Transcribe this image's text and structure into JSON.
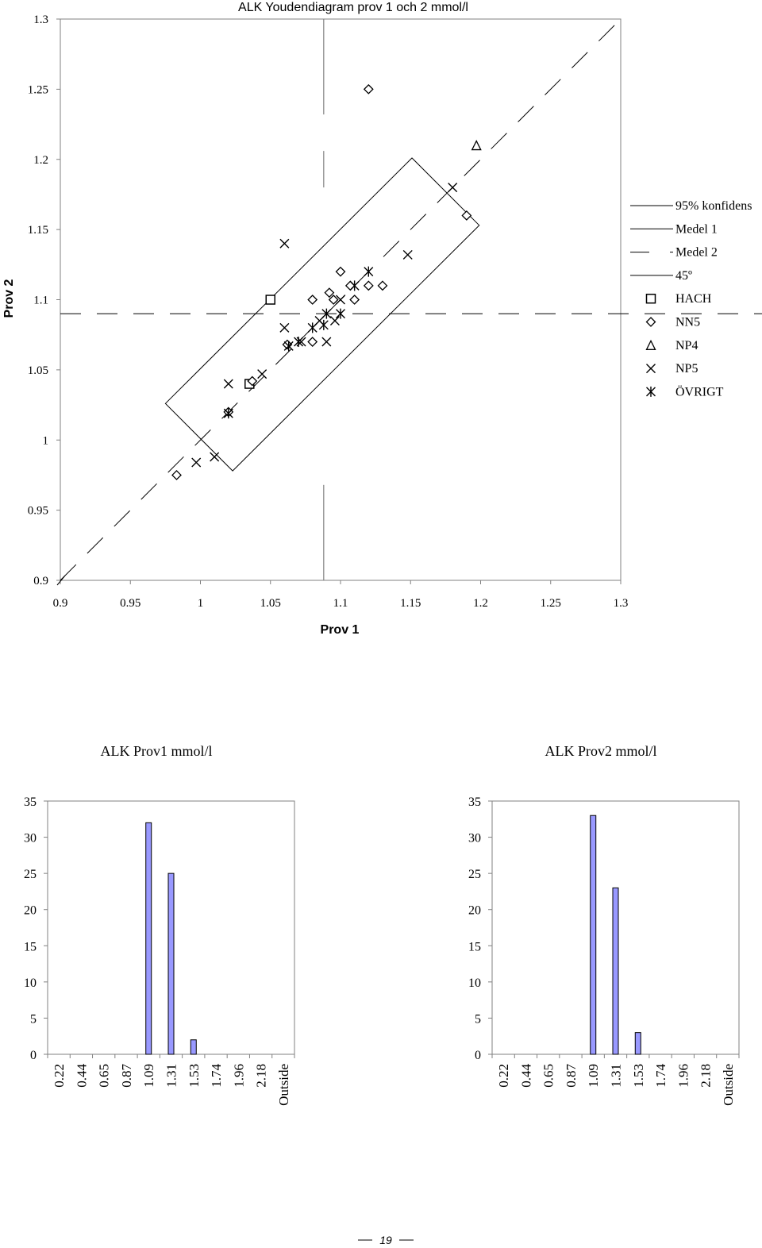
{
  "page": {
    "footer_page_number": "19"
  },
  "chart_data": [
    {
      "type": "scatter",
      "title": "ALK Youdendiagram prov 1 och 2 mmol/l",
      "xlabel": "Prov 1",
      "ylabel": "Prov 2",
      "xlim": [
        0.9,
        1.3
      ],
      "ylim": [
        0.9,
        1.3
      ],
      "xticks": [
        "0.9",
        "0.95",
        "1",
        "1.05",
        "1.1",
        "1.15",
        "1.2",
        "1.25",
        "1.3"
      ],
      "yticks": [
        "0.9",
        "0.95",
        "1",
        "1.05",
        "1.1",
        "1.15",
        "1.2",
        "1.25",
        "1.3"
      ],
      "legend_position": "right",
      "reference_lines": {
        "medel_1": 1.088,
        "medel_2": 1.09,
        "diagonal": "45°"
      },
      "confidence_region": [
        [
          0.975,
          1.026
        ],
        [
          1.151,
          1.201
        ],
        [
          1.199,
          1.153
        ],
        [
          1.023,
          0.978
        ]
      ],
      "legend": [
        {
          "key": "conf",
          "label": "95% konfidens",
          "icon": "line"
        },
        {
          "key": "m1",
          "label": "Medel 1",
          "icon": "line"
        },
        {
          "key": "m2",
          "label": "Medel 2",
          "icon": "dashed-line"
        },
        {
          "key": "d45",
          "label": "45º",
          "icon": "line"
        },
        {
          "key": "hach",
          "label": "HACH",
          "icon": "square-marker"
        },
        {
          "key": "nn5",
          "label": "NN5",
          "icon": "diamond-marker"
        },
        {
          "key": "np4",
          "label": "NP4",
          "icon": "triangle-marker"
        },
        {
          "key": "np5",
          "label": "NP5",
          "icon": "x-marker"
        },
        {
          "key": "ovrigt",
          "label": "ÖVRIGT",
          "icon": "star-marker"
        }
      ],
      "series": [
        {
          "name": "HACH",
          "marker": "square",
          "points": [
            [
              1.05,
              1.1
            ],
            [
              1.035,
              1.04
            ]
          ]
        },
        {
          "name": "NN5",
          "marker": "diamond",
          "points": [
            [
              1.12,
              1.25
            ],
            [
              1.19,
              1.16
            ],
            [
              1.1,
              1.12
            ],
            [
              1.12,
              1.11
            ],
            [
              1.13,
              1.11
            ],
            [
              1.11,
              1.1
            ],
            [
              1.107,
              1.11
            ],
            [
              1.092,
              1.105
            ],
            [
              1.08,
              1.1
            ],
            [
              1.095,
              1.1
            ],
            [
              1.08,
              1.07
            ],
            [
              1.062,
              1.068
            ],
            [
              1.037,
              1.042
            ],
            [
              1.02,
              1.02
            ],
            [
              0.983,
              0.975
            ]
          ]
        },
        {
          "name": "NP4",
          "marker": "triangle",
          "points": [
            [
              1.197,
              1.21
            ]
          ]
        },
        {
          "name": "NP5",
          "marker": "x",
          "points": [
            [
              1.18,
              1.18
            ],
            [
              1.06,
              1.14
            ],
            [
              1.148,
              1.132
            ],
            [
              1.06,
              1.08
            ],
            [
              1.02,
              1.04
            ],
            [
              1.044,
              1.047
            ],
            [
              1.09,
              1.07
            ],
            [
              1.096,
              1.085
            ],
            [
              1.1,
              1.1
            ],
            [
              1.01,
              0.988
            ],
            [
              0.997,
              0.984
            ],
            [
              1.085,
              1.085
            ],
            [
              1.072,
              1.07
            ]
          ]
        },
        {
          "name": "ÖVRIGT",
          "marker": "star",
          "points": [
            [
              1.12,
              1.12
            ],
            [
              1.11,
              1.11
            ],
            [
              1.1,
              1.09
            ],
            [
              1.09,
              1.09
            ],
            [
              1.088,
              1.082
            ],
            [
              1.08,
              1.08
            ],
            [
              1.07,
              1.07
            ],
            [
              1.063,
              1.067
            ],
            [
              1.02,
              1.019
            ]
          ]
        }
      ]
    },
    {
      "type": "bar",
      "title": "ALK Prov1 mmol/l",
      "categories": [
        "0.22",
        "0.44",
        "0.65",
        "0.87",
        "1.09",
        "1.31",
        "1.53",
        "1.74",
        "1.96",
        "2.18",
        "Outside"
      ],
      "values": [
        0,
        0,
        0,
        0,
        32,
        25,
        2,
        0,
        0,
        0,
        0
      ],
      "ylim": [
        0,
        35
      ],
      "yticks": [
        "0",
        "5",
        "10",
        "15",
        "20",
        "25",
        "30",
        "35"
      ],
      "bar_color": "#9999ff"
    },
    {
      "type": "bar",
      "title": "ALK Prov2 mmol/l",
      "categories": [
        "0.22",
        "0.44",
        "0.65",
        "0.87",
        "1.09",
        "1.31",
        "1.53",
        "1.74",
        "1.96",
        "2.18",
        "Outside"
      ],
      "values": [
        0,
        0,
        0,
        0,
        33,
        23,
        3,
        0,
        0,
        0,
        0
      ],
      "ylim": [
        0,
        35
      ],
      "yticks": [
        "0",
        "5",
        "10",
        "15",
        "20",
        "25",
        "30",
        "35"
      ],
      "bar_color": "#9999ff"
    }
  ]
}
